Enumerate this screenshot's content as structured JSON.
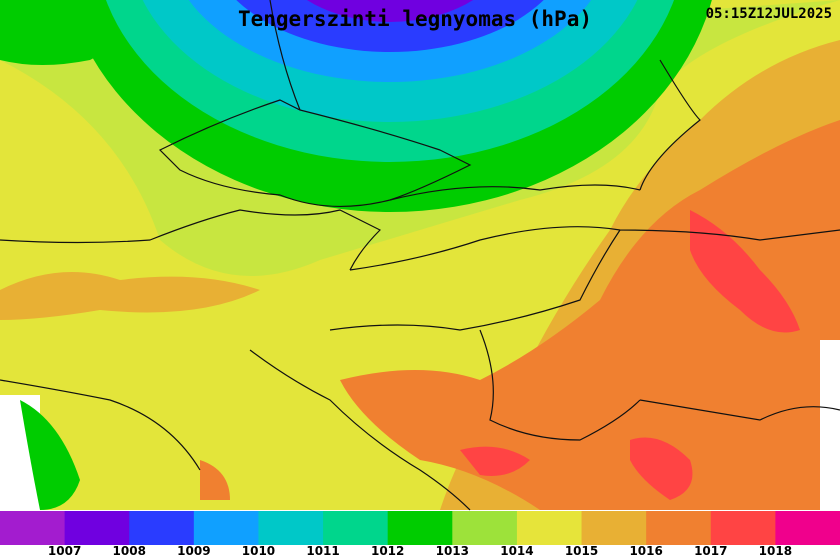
{
  "title": "Tengerszinti legnyomas (hPa)",
  "timestamp": "05:15Z12JUL2025",
  "legend": {
    "colors": [
      "#a31ccf",
      "#7000e0",
      "#2a3cff",
      "#10a0ff",
      "#00c8c8",
      "#00d68c",
      "#00cc00",
      "#9de23a",
      "#e6e43a",
      "#e8b034",
      "#f08030",
      "#ff4444",
      "#f0008c"
    ],
    "labels": [
      1007,
      1008,
      1009,
      1010,
      1011,
      1012,
      1013,
      1014,
      1015,
      1016,
      1017,
      1018
    ]
  }
}
